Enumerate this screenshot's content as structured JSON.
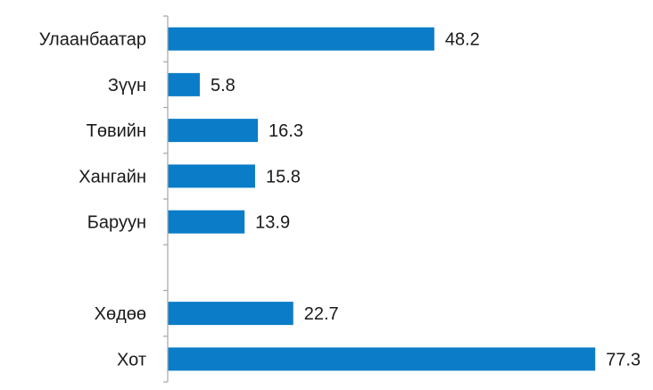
{
  "chart_data": {
    "type": "bar",
    "orientation": "horizontal",
    "categories": [
      "Улаанбаатар",
      "Зүүн",
      "Төвийн",
      "Хангайн",
      "Баруун",
      "",
      "Хөдөө",
      "Хот"
    ],
    "values": [
      48.2,
      5.8,
      16.3,
      15.8,
      13.9,
      null,
      22.7,
      77.3
    ],
    "value_labels": [
      "48.2",
      "5.8",
      "16.3",
      "15.8",
      "13.9",
      "",
      "22.7",
      "77.3"
    ],
    "xlim": [
      0,
      80
    ],
    "grid": false,
    "legend": "none",
    "bar_color": "#0a7cc8",
    "axis_color": "#a6a6a6",
    "text_color": "#1a1a1a"
  }
}
